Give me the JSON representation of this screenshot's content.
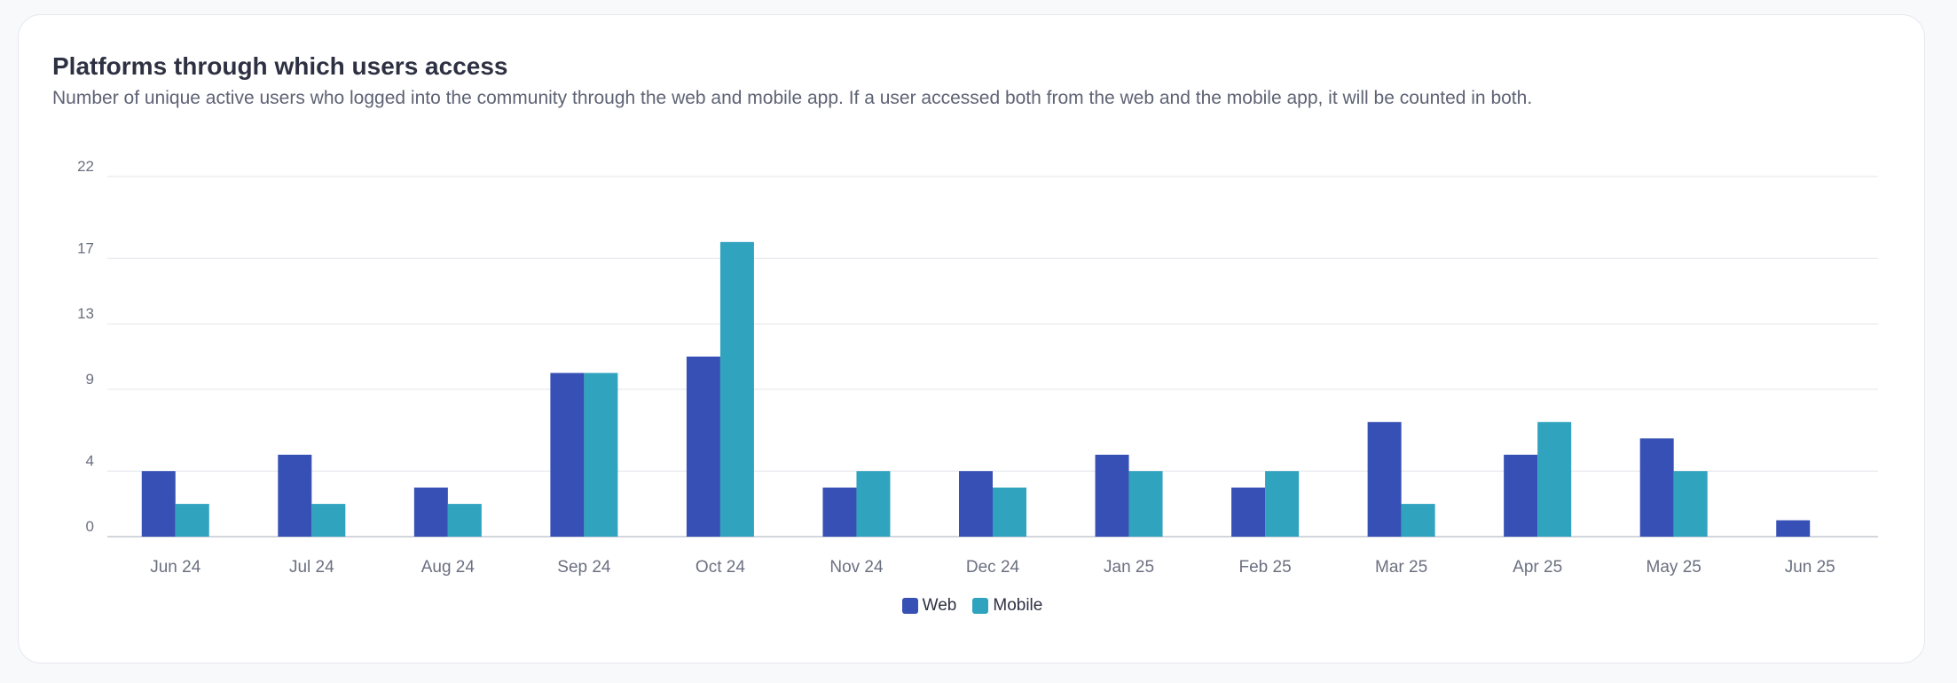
{
  "card": {
    "title": "Platforms through which users access",
    "subtitle": "Number of unique active users who logged into the community through the web and mobile app. If a user accessed both from the web and the mobile app, it will be counted in both."
  },
  "colors": {
    "web": "#3650b5",
    "mobile": "#30a3bf",
    "grid": "#e3e5ea",
    "axis": "#d3d6dd",
    "tick_text": "#6b7080"
  },
  "chart_data": {
    "type": "bar",
    "categories": [
      "Jun 24",
      "Jul 24",
      "Aug 24",
      "Sep 24",
      "Oct 24",
      "Nov 24",
      "Dec 24",
      "Jan 25",
      "Feb 25",
      "Mar 25",
      "Apr 25",
      "May 25",
      "Jun 25"
    ],
    "series": [
      {
        "name": "Web",
        "values": [
          4,
          5,
          3,
          10,
          11,
          3,
          4,
          5,
          3,
          7,
          5,
          6,
          1
        ]
      },
      {
        "name": "Mobile",
        "values": [
          2,
          2,
          2,
          10,
          18,
          4,
          3,
          4,
          4,
          2,
          7,
          4,
          0
        ]
      }
    ],
    "y_ticks": [
      "0",
      "4",
      "9",
      "13",
      "17",
      "22"
    ],
    "ylim": [
      0,
      22
    ],
    "grid": true,
    "legend": "bottom-center",
    "legend_entries": [
      "Web",
      "Mobile"
    ]
  }
}
